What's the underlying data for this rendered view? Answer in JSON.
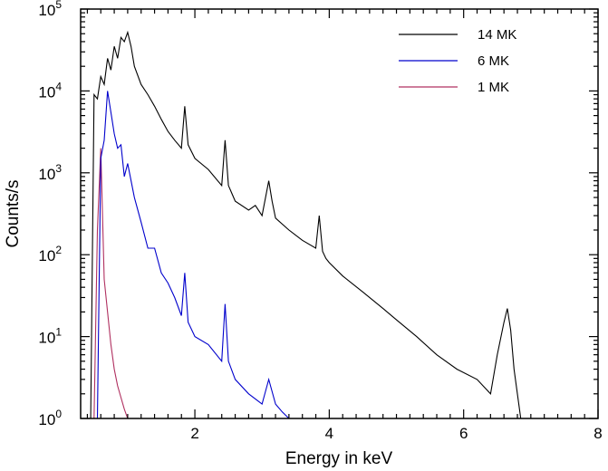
{
  "chart_data": {
    "type": "line",
    "title": "",
    "xlabel": "Energy in keV",
    "ylabel": "Counts/s",
    "xlim": [
      0.3,
      8
    ],
    "ylim": [
      1,
      100000
    ],
    "yscale": "log",
    "x_ticks": [
      2,
      4,
      6,
      8
    ],
    "y_tick_exponents": [
      0,
      1,
      2,
      3,
      4,
      5
    ],
    "y_tick_base": "10",
    "legend_position": "top-right",
    "series": [
      {
        "name": "14 MK",
        "color": "#000000",
        "x": [
          0.45,
          0.5,
          0.55,
          0.6,
          0.65,
          0.7,
          0.75,
          0.8,
          0.85,
          0.9,
          0.95,
          1.0,
          1.05,
          1.1,
          1.2,
          1.3,
          1.4,
          1.5,
          1.6,
          1.7,
          1.8,
          1.85,
          1.9,
          2.0,
          2.2,
          2.4,
          2.45,
          2.5,
          2.6,
          2.8,
          2.9,
          3.0,
          3.1,
          3.15,
          3.2,
          3.4,
          3.6,
          3.8,
          3.85,
          3.9,
          3.95,
          4.0,
          4.2,
          4.5,
          4.8,
          5.0,
          5.3,
          5.6,
          5.9,
          6.2,
          6.4,
          6.5,
          6.6,
          6.65,
          6.7,
          6.75,
          6.8,
          6.85
        ],
        "y": [
          1,
          9000,
          8000,
          15000,
          12000,
          25000,
          18000,
          35000,
          25000,
          45000,
          40000,
          52000,
          35000,
          20000,
          12000,
          9000,
          6500,
          4500,
          3200,
          2500,
          2000,
          6500,
          2200,
          1500,
          1100,
          700,
          2500,
          700,
          450,
          350,
          400,
          300,
          800,
          450,
          280,
          200,
          150,
          120,
          300,
          110,
          90,
          80,
          55,
          35,
          22,
          16,
          10,
          6,
          4,
          3,
          2,
          6,
          15,
          22,
          12,
          4,
          2,
          1
        ],
        "values_note": "approximate, read from log-scale gridlines"
      },
      {
        "name": "6 MK",
        "color": "#0000CC",
        "x": [
          0.55,
          0.6,
          0.65,
          0.7,
          0.75,
          0.8,
          0.85,
          0.9,
          0.95,
          1.0,
          1.1,
          1.2,
          1.3,
          1.4,
          1.5,
          1.6,
          1.7,
          1.8,
          1.85,
          1.9,
          2.0,
          2.2,
          2.4,
          2.45,
          2.5,
          2.6,
          2.8,
          3.0,
          3.1,
          3.2,
          3.3,
          3.4,
          3.45
        ],
        "y": [
          1,
          1500,
          2500,
          10000,
          5500,
          3000,
          2000,
          2200,
          900,
          1300,
          500,
          250,
          120,
          120,
          60,
          45,
          30,
          18,
          60,
          15,
          10,
          8,
          5,
          25,
          5,
          3,
          2,
          1.5,
          3,
          1.5,
          1.2,
          1,
          1
        ]
      },
      {
        "name": "1 MK",
        "color": "#B03060",
        "x": [
          0.5,
          0.55,
          0.6,
          0.65,
          0.7,
          0.75,
          0.8,
          0.85,
          0.9,
          0.95,
          1.0
        ],
        "y": [
          1,
          200,
          2000,
          50,
          20,
          8,
          4,
          2.5,
          1.8,
          1.3,
          1
        ]
      }
    ]
  }
}
